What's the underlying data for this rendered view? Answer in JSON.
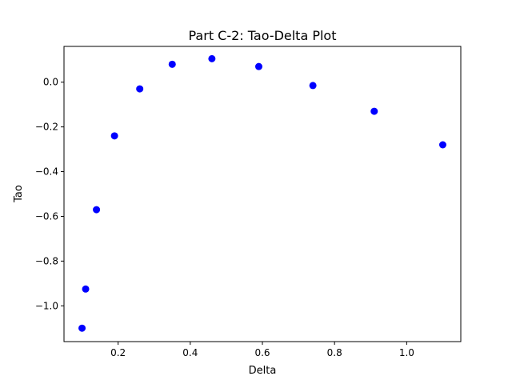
{
  "chart_data": {
    "type": "scatter",
    "title": "Part C-2: Tao-Delta Plot",
    "xlabel": "Delta",
    "ylabel": "Tao",
    "xlim": [
      0.05,
      1.15
    ],
    "ylim": [
      -1.16,
      0.16
    ],
    "xticks": [
      0.2,
      0.4,
      0.6,
      0.8,
      1.0
    ],
    "xtick_labels": [
      "0.2",
      "0.4",
      "0.6",
      "0.8",
      "1.0"
    ],
    "yticks": [
      -1.0,
      -0.8,
      -0.6,
      -0.4,
      -0.2,
      0.0
    ],
    "ytick_labels": [
      "−1.0",
      "−0.8",
      "−0.6",
      "−0.4",
      "−0.2",
      "0.0"
    ],
    "grid": false,
    "marker_color": "#0000ff",
    "series": [
      {
        "x": [
          0.1,
          0.11,
          0.14,
          0.19,
          0.26,
          0.35,
          0.46,
          0.59,
          0.74,
          0.91,
          1.1
        ],
        "y": [
          -1.1,
          -0.925,
          -0.57,
          -0.24,
          -0.03,
          0.08,
          0.105,
          0.07,
          -0.015,
          -0.13,
          -0.28
        ]
      }
    ]
  }
}
